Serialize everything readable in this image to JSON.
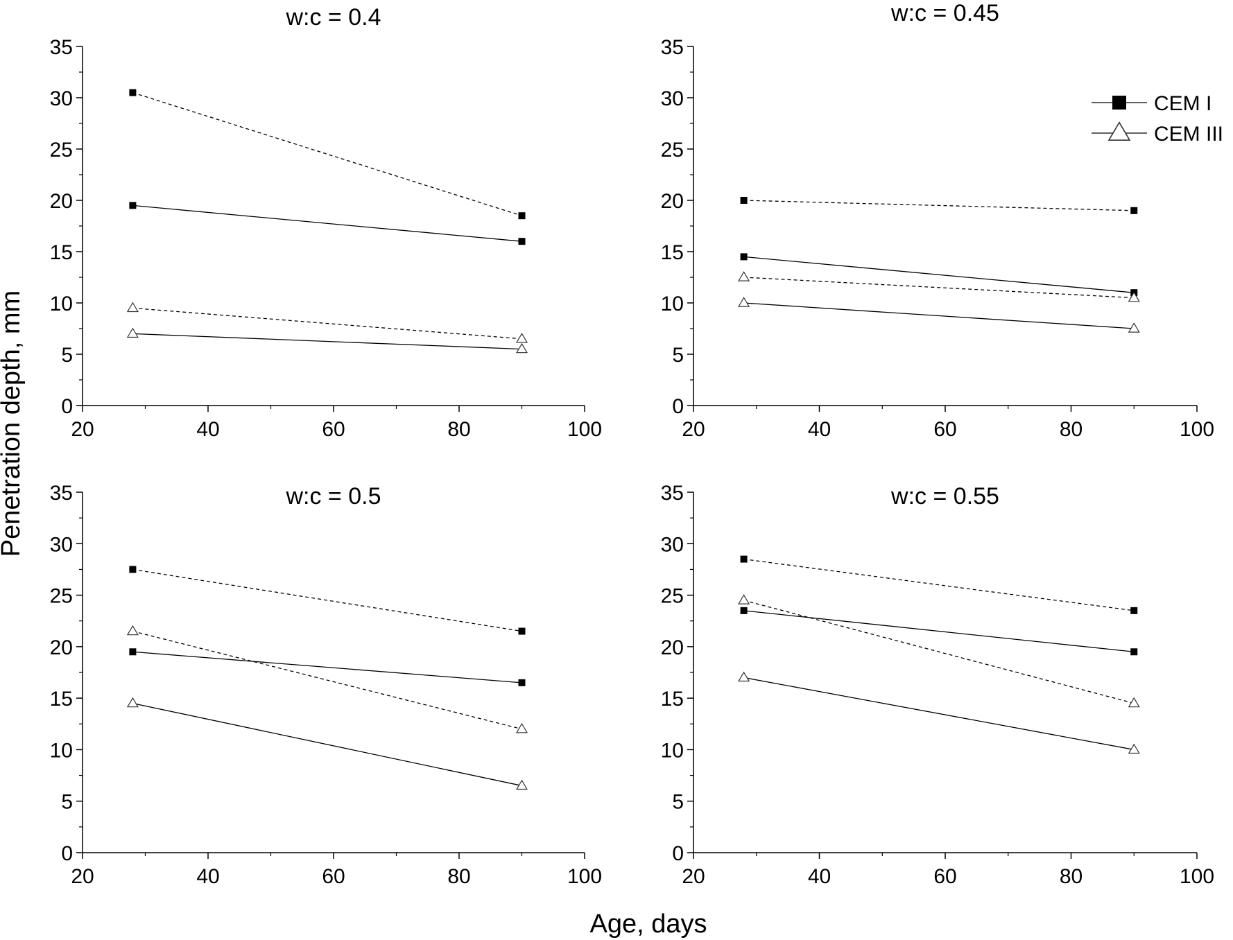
{
  "figure": {
    "ylabel": "Penetration depth, mm",
    "xlabel": "Age, days"
  },
  "legend": {
    "items": [
      {
        "label": "CEM I",
        "marker": "square-filled"
      },
      {
        "label": "CEM III",
        "marker": "triangle-open"
      }
    ]
  },
  "chart_data": [
    {
      "type": "line",
      "title": "w:c = 0.4",
      "xlim": [
        20,
        100
      ],
      "ylim": [
        0,
        35
      ],
      "xticks": [
        20,
        40,
        60,
        80,
        100
      ],
      "yticks": [
        0,
        5,
        10,
        15,
        20,
        25,
        30,
        35
      ],
      "grid": false,
      "series": [
        {
          "cement": "CEM I",
          "marker": "square-filled",
          "line": "dashed",
          "x": [
            28,
            90
          ],
          "values": [
            30.5,
            18.5
          ]
        },
        {
          "cement": "CEM I",
          "marker": "square-filled",
          "line": "solid",
          "x": [
            28,
            90
          ],
          "values": [
            19.5,
            16
          ]
        },
        {
          "cement": "CEM III",
          "marker": "triangle-open",
          "line": "dashed",
          "x": [
            28,
            90
          ],
          "values": [
            9.5,
            6.5
          ]
        },
        {
          "cement": "CEM III",
          "marker": "triangle-open",
          "line": "solid",
          "x": [
            28,
            90
          ],
          "values": [
            7,
            5.5
          ]
        }
      ]
    },
    {
      "type": "line",
      "title": "w:c = 0.45",
      "xlim": [
        20,
        100
      ],
      "ylim": [
        0,
        35
      ],
      "xticks": [
        20,
        40,
        60,
        80,
        100
      ],
      "yticks": [
        0,
        5,
        10,
        15,
        20,
        25,
        30,
        35
      ],
      "grid": false,
      "legend_position": "top-right",
      "series": [
        {
          "cement": "CEM I",
          "marker": "square-filled",
          "line": "dashed",
          "x": [
            28,
            90
          ],
          "values": [
            20,
            19
          ]
        },
        {
          "cement": "CEM I",
          "marker": "square-filled",
          "line": "solid",
          "x": [
            28,
            90
          ],
          "values": [
            14.5,
            11
          ]
        },
        {
          "cement": "CEM III",
          "marker": "triangle-open",
          "line": "dashed",
          "x": [
            28,
            90
          ],
          "values": [
            12.5,
            10.5
          ]
        },
        {
          "cement": "CEM III",
          "marker": "triangle-open",
          "line": "solid",
          "x": [
            28,
            90
          ],
          "values": [
            10,
            7.5
          ]
        }
      ]
    },
    {
      "type": "line",
      "title": "w:c = 0.5",
      "xlim": [
        20,
        100
      ],
      "ylim": [
        0,
        35
      ],
      "xticks": [
        20,
        40,
        60,
        80,
        100
      ],
      "yticks": [
        0,
        5,
        10,
        15,
        20,
        25,
        30,
        35
      ],
      "grid": false,
      "series": [
        {
          "cement": "CEM I",
          "marker": "square-filled",
          "line": "dashed",
          "x": [
            28,
            90
          ],
          "values": [
            27.5,
            21.5
          ]
        },
        {
          "cement": "CEM I",
          "marker": "square-filled",
          "line": "solid",
          "x": [
            28,
            90
          ],
          "values": [
            19.5,
            16.5
          ]
        },
        {
          "cement": "CEM III",
          "marker": "triangle-open",
          "line": "dashed",
          "x": [
            28,
            90
          ],
          "values": [
            21.5,
            12
          ]
        },
        {
          "cement": "CEM III",
          "marker": "triangle-open",
          "line": "solid",
          "x": [
            28,
            90
          ],
          "values": [
            14.5,
            6.5
          ]
        }
      ]
    },
    {
      "type": "line",
      "title": "w:c = 0.55",
      "xlim": [
        20,
        100
      ],
      "ylim": [
        0,
        35
      ],
      "xticks": [
        20,
        40,
        60,
        80,
        100
      ],
      "yticks": [
        0,
        5,
        10,
        15,
        20,
        25,
        30,
        35
      ],
      "grid": false,
      "series": [
        {
          "cement": "CEM I",
          "marker": "square-filled",
          "line": "dashed",
          "x": [
            28,
            90
          ],
          "values": [
            28.5,
            23.5
          ]
        },
        {
          "cement": "CEM I",
          "marker": "square-filled",
          "line": "solid",
          "x": [
            28,
            90
          ],
          "values": [
            23.5,
            19.5
          ]
        },
        {
          "cement": "CEM III",
          "marker": "triangle-open",
          "line": "dashed",
          "x": [
            28,
            90
          ],
          "values": [
            24.5,
            14.5
          ]
        },
        {
          "cement": "CEM III",
          "marker": "triangle-open",
          "line": "solid",
          "x": [
            28,
            90
          ],
          "values": [
            17,
            10
          ]
        }
      ]
    }
  ]
}
